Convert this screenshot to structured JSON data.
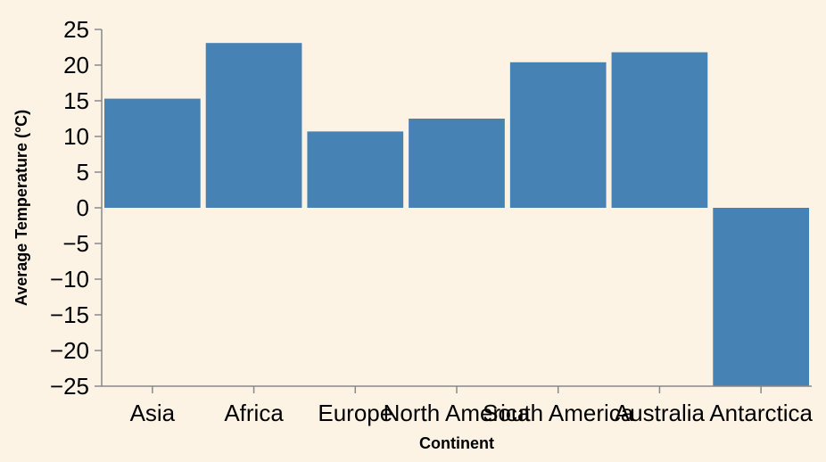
{
  "chart_data": {
    "type": "bar",
    "categories": [
      "Asia",
      "Africa",
      "Europe",
      "North America",
      "South America",
      "Australia",
      "Antarctica"
    ],
    "values": [
      15.3,
      23.1,
      10.7,
      12.5,
      20.4,
      21.8,
      -25
    ],
    "xlabel": "Continent",
    "ylabel": "Average Temperature (°C)",
    "ylim": [
      -25,
      25
    ],
    "yticks": [
      "25",
      "20",
      "15",
      "10",
      "5",
      "0",
      "−5",
      "−10",
      "−15",
      "−20",
      "−25"
    ],
    "ytick_values": [
      25,
      20,
      15,
      10,
      5,
      0,
      -5,
      -10,
      -15,
      -20,
      -25
    ],
    "grid": false,
    "bar_color": "#4682b4",
    "background": "#fdf3e5"
  }
}
